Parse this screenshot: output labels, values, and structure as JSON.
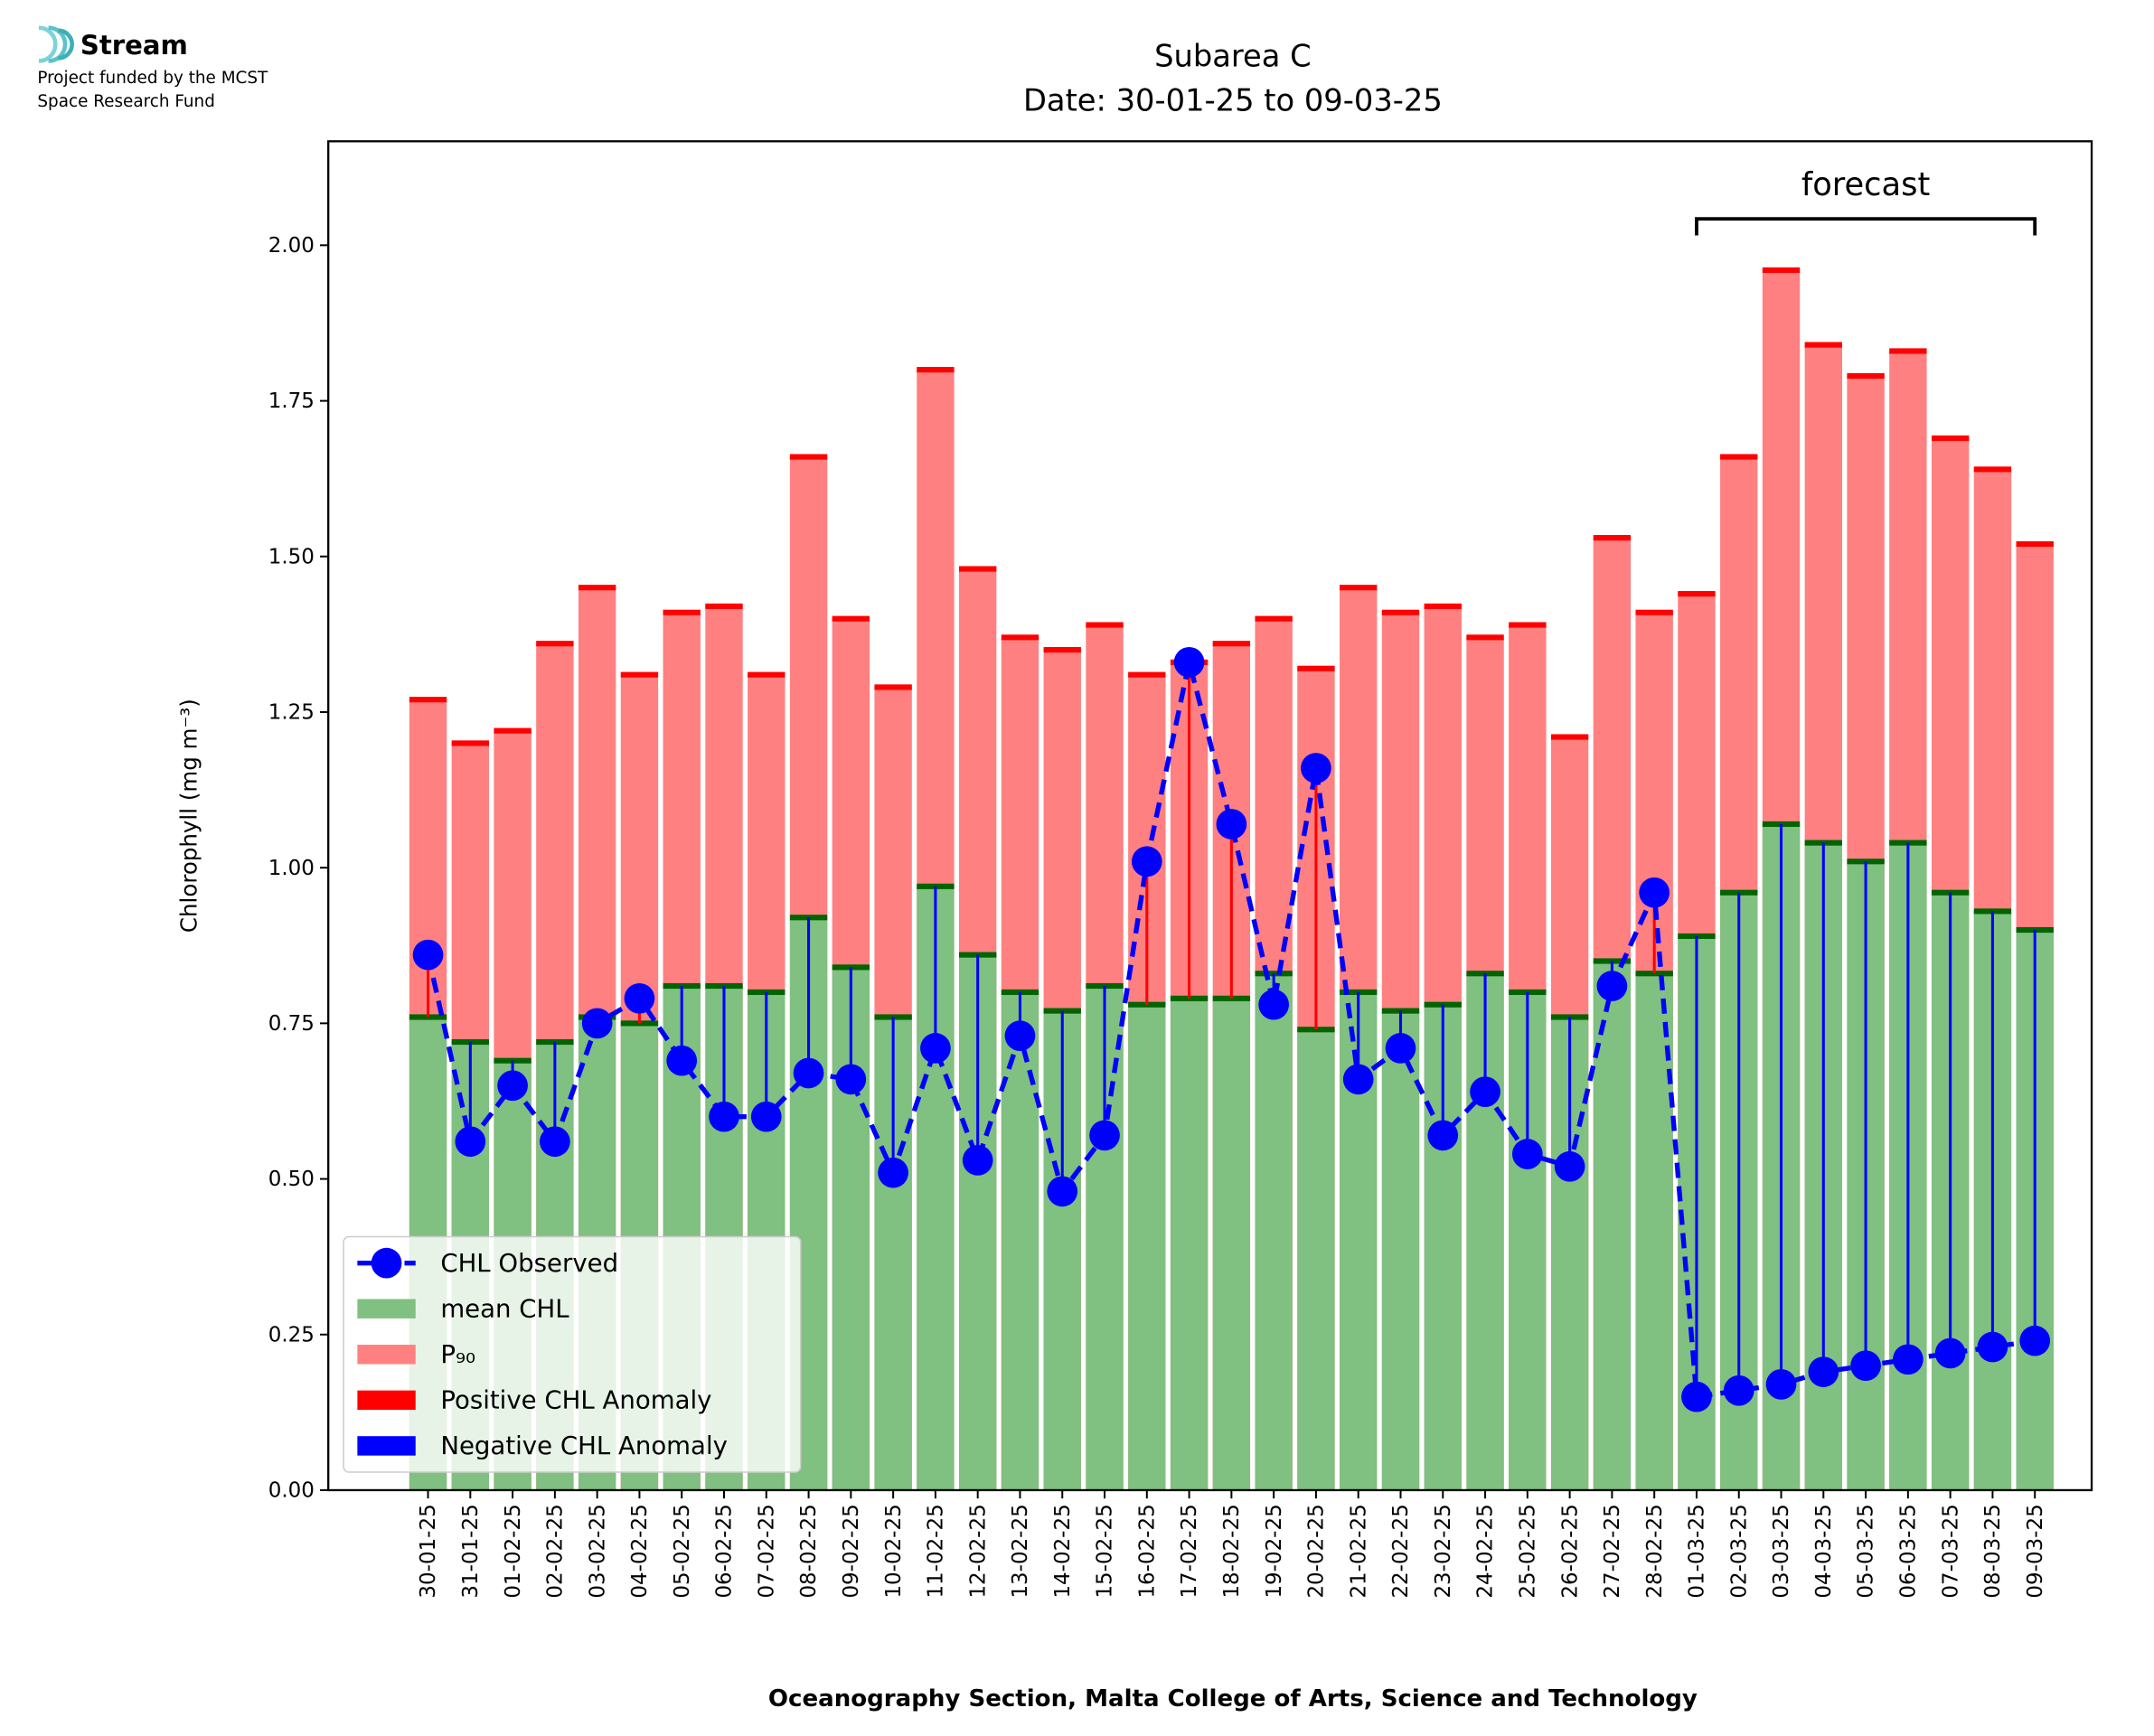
{
  "logo": {
    "name": "Stream",
    "lines": [
      "Project funded by the MCST",
      "Space Research Fund"
    ]
  },
  "chart_data": {
    "type": "bar",
    "title": "Subarea C",
    "subtitle": "Date: 30-01-25 to 09-03-25",
    "x_label": "Oceanography Section, Malta College of Arts, Science and Technology",
    "y_label": "Chlorophyll (mg m⁻³)",
    "categories": [
      "30-01-25",
      "31-01-25",
      "01-02-25",
      "02-02-25",
      "03-02-25",
      "04-02-25",
      "05-02-25",
      "06-02-25",
      "07-02-25",
      "08-02-25",
      "09-02-25",
      "10-02-25",
      "11-02-25",
      "12-02-25",
      "13-02-25",
      "14-02-25",
      "15-02-25",
      "16-02-25",
      "17-02-25",
      "18-02-25",
      "19-02-25",
      "20-02-25",
      "21-02-25",
      "22-02-25",
      "23-02-25",
      "24-02-25",
      "25-02-25",
      "26-02-25",
      "27-02-25",
      "28-02-25",
      "01-03-25",
      "02-03-25",
      "03-03-25",
      "04-03-25",
      "05-03-25",
      "06-03-25",
      "07-03-25",
      "08-03-25",
      "09-03-25"
    ],
    "series": [
      {
        "name": "CHL Observed",
        "color": "#0000ff",
        "values": [
          0.86,
          0.56,
          0.65,
          0.56,
          0.75,
          0.79,
          0.69,
          0.6,
          0.6,
          0.67,
          0.66,
          0.51,
          0.71,
          0.53,
          0.73,
          0.48,
          0.57,
          1.01,
          1.33,
          1.07,
          0.78,
          1.16,
          0.66,
          0.71,
          0.57,
          0.64,
          0.54,
          0.52,
          0.81,
          0.96,
          0.15,
          0.16,
          0.17,
          0.19,
          0.2,
          0.21,
          0.22,
          0.23,
          0.24
        ]
      },
      {
        "name": "mean CHL",
        "color": "#80c080",
        "cap_color": "#006400",
        "values": [
          0.76,
          0.72,
          0.69,
          0.72,
          0.76,
          0.75,
          0.81,
          0.81,
          0.8,
          0.92,
          0.84,
          0.76,
          0.97,
          0.86,
          0.8,
          0.77,
          0.81,
          0.78,
          0.79,
          0.79,
          0.83,
          0.74,
          0.8,
          0.77,
          0.78,
          0.83,
          0.8,
          0.76,
          0.85,
          0.83,
          0.89,
          0.96,
          1.07,
          1.04,
          1.01,
          1.04,
          0.96,
          0.93,
          0.9
        ]
      },
      {
        "name": "P₉₀",
        "color": "#ff8080",
        "cap_color": "#ff0000",
        "values": [
          1.27,
          1.2,
          1.22,
          1.36,
          1.45,
          1.31,
          1.41,
          1.42,
          1.31,
          1.66,
          1.4,
          1.29,
          1.8,
          1.48,
          1.37,
          1.35,
          1.39,
          1.31,
          1.33,
          1.36,
          1.4,
          1.32,
          1.45,
          1.41,
          1.42,
          1.37,
          1.39,
          1.21,
          1.53,
          1.41,
          1.44,
          1.66,
          1.96,
          1.84,
          1.79,
          1.83,
          1.69,
          1.64,
          1.52
        ]
      }
    ],
    "anomaly_legend": [
      {
        "name": "Positive CHL Anomaly",
        "color": "#ff0000"
      },
      {
        "name": "Negative CHL Anomaly",
        "color": "#0000ff"
      }
    ],
    "annotation": {
      "text": "forecast",
      "start": "01-03-25",
      "end": "09-03-25"
    },
    "ylim": [
      0,
      2.167
    ],
    "yticks": [
      {
        "value": 0,
        "label": "0.00"
      },
      0.25,
      {
        "value": 0.5,
        "label": "0.50"
      },
      0.75,
      {
        "value": 1,
        "label": "1.00"
      },
      1.25,
      {
        "value": 1.5,
        "label": "1.50"
      },
      1.75,
      {
        "value": 2,
        "label": "2.00"
      }
    ],
    "legend": "lower left"
  }
}
